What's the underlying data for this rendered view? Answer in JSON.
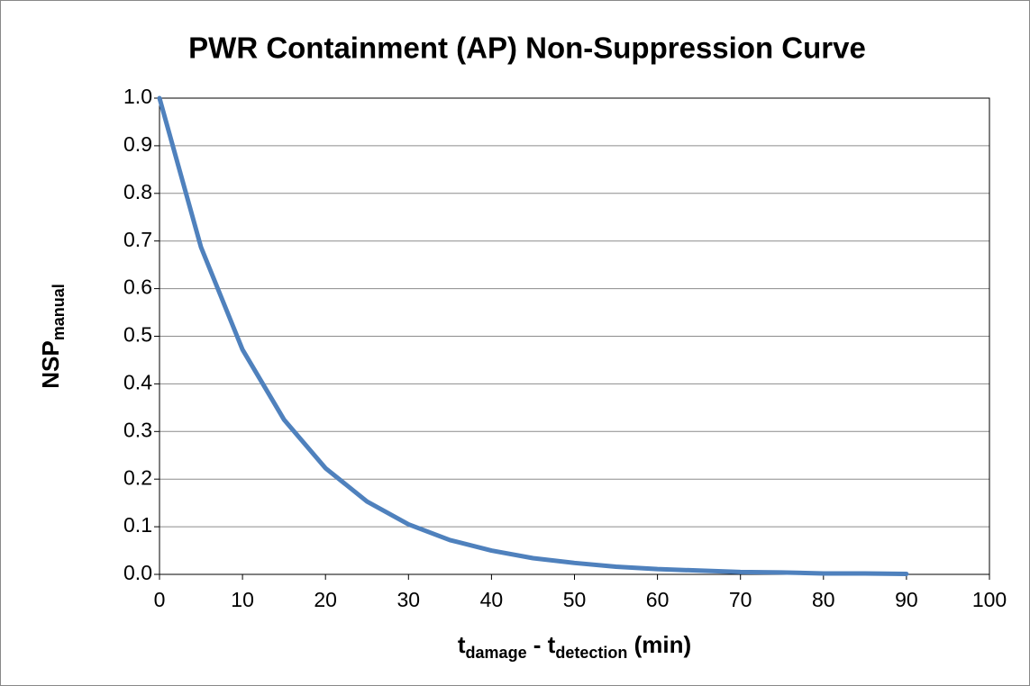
{
  "chart_data": {
    "type": "line",
    "title": "PWR Containment (AP) Non-Suppression Curve",
    "y_label": [
      {
        "text": "NSP"
      },
      {
        "sub": "manual"
      }
    ],
    "x_label": [
      {
        "text": "t"
      },
      {
        "sub": "damage"
      },
      {
        "text": " - t"
      },
      {
        "sub": "detection"
      },
      {
        "text": " (min)"
      }
    ],
    "x": [
      0,
      5,
      10,
      15,
      20,
      25,
      30,
      35,
      40,
      45,
      50,
      55,
      60,
      65,
      70,
      75,
      80,
      85,
      90
    ],
    "series": [
      {
        "name": "NSP",
        "color": "#4f81bd",
        "values": [
          1,
          0.687,
          0.472,
          0.325,
          0.223,
          0.153,
          0.105,
          0.072,
          0.05,
          0.034,
          0.024,
          0.016,
          0.011,
          0.008,
          0.005,
          0.004,
          0.002,
          0.002,
          0.001
        ]
      }
    ],
    "xlim": [
      0,
      100
    ],
    "xticks": [
      0,
      10,
      20,
      30,
      40,
      50,
      60,
      70,
      80,
      90,
      100
    ],
    "ylim": [
      0,
      1
    ],
    "yticks": [
      {
        "value": 0,
        "label": "0.0"
      },
      {
        "value": 0.1,
        "label": "0.1"
      },
      {
        "value": 0.2,
        "label": "0.2"
      },
      {
        "value": 0.3,
        "label": "0.3"
      },
      {
        "value": 0.4,
        "label": "0.4"
      },
      {
        "value": 0.5,
        "label": "0.5"
      },
      {
        "value": 0.6,
        "label": "0.6"
      },
      {
        "value": 0.7,
        "label": "0.7"
      },
      {
        "value": 0.8,
        "label": "0.8"
      },
      {
        "value": 0.9,
        "label": "0.9"
      },
      {
        "value": 1,
        "label": "1.0"
      }
    ],
    "grid": true
  }
}
